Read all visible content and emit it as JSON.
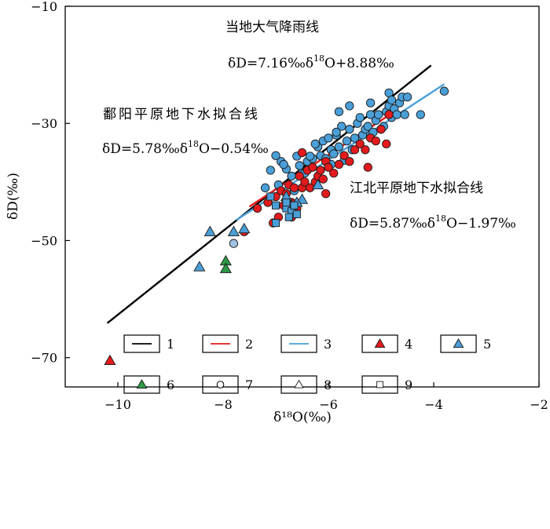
{
  "chart_data": {
    "type": "scatter",
    "xlabel": "δ¹⁸O(‰)",
    "ylabel": "δD(‰)",
    "xlim": [
      -11,
      -2
    ],
    "ylim": [
      -75,
      -10
    ],
    "xticks": [
      -10,
      -8,
      -6,
      -4,
      -2
    ],
    "xtick_labels": [
      "−10",
      "−8",
      "−6",
      "−4",
      "−2"
    ],
    "yticks": [
      -10,
      -30,
      -50,
      -70
    ],
    "ytick_labels": [
      "−10",
      "−30",
      "−50",
      "−70"
    ],
    "grid": false,
    "legend_position": "bottom",
    "lines": [
      {
        "id": "1",
        "color": "#000000",
        "x": [
          -10.2,
          -4.05
        ],
        "y": [
          -64.1,
          -20.1
        ]
      },
      {
        "id": "2",
        "color": "#e31a1c",
        "x": [
          -7.5,
          -4.9
        ],
        "y": [
          -44.2,
          -28.9
        ]
      },
      {
        "id": "3",
        "color": "#4a9fd8",
        "x": [
          -7.75,
          -3.8
        ],
        "y": [
          -46.5,
          -23.3
        ]
      }
    ],
    "annotations": [
      {
        "id": "gmwl_title",
        "text": "当地大气降雨线"
      },
      {
        "id": "gmwl_eq_a",
        "text": "δD=7.16‰δ"
      },
      {
        "id": "gmwl_eq_sup",
        "text": "18"
      },
      {
        "id": "gmwl_eq_b",
        "text": "O+8.88‰"
      },
      {
        "id": "pyang_title",
        "text": "鄱阳平原地下水拟合线"
      },
      {
        "id": "pyang_eq_a",
        "text": "δD=5.78‰δ"
      },
      {
        "id": "pyang_eq_sup",
        "text": "18"
      },
      {
        "id": "pyang_eq_b",
        "text": "O−0.54‰"
      },
      {
        "id": "jbei_title",
        "text": "江北平原地下水拟合线"
      },
      {
        "id": "jbei_eq_a",
        "text": "δD=5.87‰δ"
      },
      {
        "id": "jbei_eq_sup",
        "text": "18"
      },
      {
        "id": "jbei_eq_b",
        "text": "O−1.97‰"
      }
    ],
    "series": [
      {
        "id": "blue-circles",
        "marker": "circle",
        "color": "#4a9fd8",
        "points": [
          [
            -7.1,
            -38
          ],
          [
            -6.9,
            -36.5
          ],
          [
            -6.8,
            -37.8
          ],
          [
            -6.7,
            -39
          ],
          [
            -6.6,
            -35.6
          ],
          [
            -6.5,
            -38.5
          ],
          [
            -6.4,
            -36.5
          ],
          [
            -6.3,
            -36
          ],
          [
            -6.2,
            -34
          ],
          [
            -6.15,
            -35.5
          ],
          [
            -6.1,
            -33
          ],
          [
            -6.05,
            -36
          ],
          [
            -6,
            -32.5
          ],
          [
            -5.95,
            -34.5
          ],
          [
            -5.9,
            -35.2
          ],
          [
            -5.85,
            -32
          ],
          [
            -5.8,
            -34
          ],
          [
            -5.75,
            -30.5
          ],
          [
            -5.7,
            -36.3
          ],
          [
            -5.65,
            -33
          ],
          [
            -5.6,
            -31
          ],
          [
            -5.55,
            -34.5
          ],
          [
            -5.5,
            -32.5
          ],
          [
            -5.45,
            -30
          ],
          [
            -5.4,
            -29
          ],
          [
            -5.35,
            -32
          ],
          [
            -5.3,
            -31
          ],
          [
            -5.25,
            -30.5
          ],
          [
            -5.2,
            -28.5
          ],
          [
            -5.15,
            -31.5
          ],
          [
            -5.1,
            -29.5
          ],
          [
            -5.05,
            -28.5
          ],
          [
            -5,
            -31
          ],
          [
            -4.95,
            -30.5
          ],
          [
            -4.9,
            -28
          ],
          [
            -4.85,
            -27
          ],
          [
            -4.8,
            -29
          ],
          [
            -4.75,
            -27.5
          ],
          [
            -4.7,
            -28.5
          ],
          [
            -4.65,
            -26.5
          ],
          [
            -4.6,
            -25.5
          ],
          [
            -4.55,
            -28.5
          ],
          [
            -4.5,
            -25.5
          ],
          [
            -5.8,
            -28
          ],
          [
            -5.6,
            -27
          ],
          [
            -4.85,
            -24.8
          ],
          [
            -4.8,
            -26
          ],
          [
            -4.25,
            -28.5
          ],
          [
            -3.8,
            -24.5
          ],
          [
            -5.2,
            -26.5
          ],
          [
            -7,
            -35.5
          ],
          [
            -6.85,
            -37
          ],
          [
            -6.55,
            -37.2
          ],
          [
            -6.35,
            -35.6
          ],
          [
            -6.25,
            -33.5
          ],
          [
            -5.85,
            -31.5
          ],
          [
            -5.95,
            -37
          ],
          [
            -6.65,
            -41.5
          ],
          [
            -6.95,
            -40.5
          ],
          [
            -7.2,
            -41
          ],
          [
            -6.45,
            -38.5
          ]
        ]
      },
      {
        "id": "red-circles",
        "marker": "circle",
        "color": "#e31a1c",
        "points": [
          [
            -7.6,
            -48.5
          ],
          [
            -7.35,
            -44.5
          ],
          [
            -7.15,
            -43.5
          ],
          [
            -7,
            -42.5
          ],
          [
            -6.95,
            -46
          ],
          [
            -6.9,
            -41.5
          ],
          [
            -6.85,
            -44
          ],
          [
            -6.8,
            -42
          ],
          [
            -6.75,
            -40.5
          ],
          [
            -6.7,
            -43.5
          ],
          [
            -6.65,
            -41
          ],
          [
            -6.6,
            -44.5
          ],
          [
            -6.55,
            -39
          ],
          [
            -6.5,
            -41
          ],
          [
            -6.45,
            -40
          ],
          [
            -6.4,
            -38
          ],
          [
            -6.35,
            -41
          ],
          [
            -6.3,
            -37.5
          ],
          [
            -6.25,
            -40
          ],
          [
            -6.2,
            -39
          ],
          [
            -6.15,
            -38
          ],
          [
            -6.1,
            -39.5
          ],
          [
            -6.05,
            -36.5
          ],
          [
            -6,
            -37.5
          ],
          [
            -5.9,
            -38.5
          ],
          [
            -5.8,
            -37
          ],
          [
            -5.7,
            -35.5
          ],
          [
            -5.6,
            -36.5
          ],
          [
            -5.5,
            -34.5
          ],
          [
            -5.4,
            -33.5
          ],
          [
            -5.3,
            -34.5
          ],
          [
            -5.2,
            -32.5
          ],
          [
            -5.1,
            -33
          ],
          [
            -5,
            -31
          ],
          [
            -4.9,
            -33.5
          ],
          [
            -4.85,
            -28.5
          ],
          [
            -5.25,
            -37.5
          ],
          [
            -6.7,
            -46
          ],
          [
            -7.05,
            -47
          ],
          [
            -6.5,
            -35
          ],
          [
            -6.05,
            -42
          ]
        ]
      },
      {
        "id": "red-triangles",
        "marker": "triangle",
        "color": "#e31a1c",
        "points": [
          [
            -10.15,
            -70.5
          ]
        ]
      },
      {
        "id": "blue-triangles",
        "marker": "triangle",
        "color": "#4a9fd8",
        "points": [
          [
            -8.45,
            -54.5
          ],
          [
            -8.25,
            -48.5
          ],
          [
            -7.8,
            -48.5
          ],
          [
            -7.6,
            -48
          ],
          [
            -6.2,
            -40.5
          ],
          [
            -6.5,
            -43
          ],
          [
            -6.7,
            -44
          ],
          [
            -6.8,
            -42.5
          ],
          [
            -6.6,
            -43.5
          ]
        ]
      },
      {
        "id": "green-triangles",
        "marker": "triangle",
        "color": "#2e9a46",
        "points": [
          [
            -7.95,
            -53.5
          ],
          [
            -7.95,
            -54.8
          ]
        ]
      },
      {
        "id": "blue-squares",
        "marker": "square",
        "color": "#4a9fd8",
        "points": [
          [
            -7.1,
            -42.5
          ],
          [
            -7.0,
            -44
          ],
          [
            -6.8,
            -44.5
          ],
          [
            -6.7,
            -45
          ],
          [
            -6.75,
            -46
          ],
          [
            -6.65,
            -44
          ],
          [
            -7.0,
            -47
          ],
          [
            -6.6,
            -45.5
          ],
          [
            -6.8,
            -43.5
          ]
        ]
      },
      {
        "id": "grey-circles",
        "marker": "circle",
        "color": "#9fc3e0",
        "points": [
          [
            -7.8,
            -50.5
          ]
        ]
      }
    ],
    "legend": [
      {
        "label": "1",
        "symbol": "line",
        "color": "#000000"
      },
      {
        "label": "2",
        "symbol": "line",
        "color": "#e31a1c"
      },
      {
        "label": "3",
        "symbol": "line",
        "color": "#4a9fd8"
      },
      {
        "label": "4",
        "symbol": "triangle",
        "color": "#e31a1c"
      },
      {
        "label": "5",
        "symbol": "triangle",
        "color": "#4a9fd8"
      },
      {
        "label": "6",
        "symbol": "triangle",
        "color": "#2e9a46"
      },
      {
        "label": "7",
        "symbol": "circle-open",
        "color": "#000000"
      },
      {
        "label": "8",
        "symbol": "triangle-open",
        "color": "#000000"
      },
      {
        "label": "9",
        "symbol": "square-open",
        "color": "#000000"
      }
    ]
  }
}
